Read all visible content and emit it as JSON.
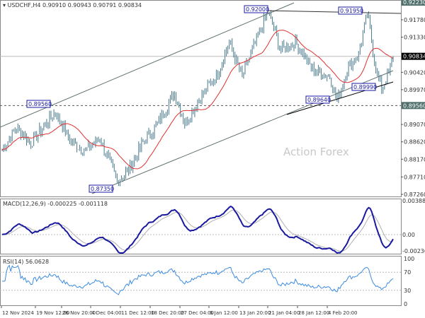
{
  "header": {
    "symbol": "USDCHF,H4",
    "ohlc": "0.90910 0.90943 0.90791 0.90834"
  },
  "watermark": "Action Forex",
  "chart_data": {
    "type": "line",
    "title": "USDCHF,H4",
    "price_ticks": [
      "0.92230",
      "0.91780",
      "0.91330",
      "0.90420",
      "0.89970",
      "0.89560",
      "0.89070",
      "0.88620",
      "0.88170",
      "0.87710",
      "0.87260"
    ],
    "current_price": "0.90834",
    "ylim": [
      0.8715,
      0.9235
    ],
    "annotations": [
      "0.92000",
      "0.91950",
      "0.89560",
      "0.87350",
      "0.89640",
      "0.89990"
    ],
    "close_anchors": [
      [
        0,
        0.884
      ],
      [
        10,
        0.89
      ],
      [
        20,
        0.886
      ],
      [
        37,
        0.894
      ],
      [
        48,
        0.886
      ],
      [
        58,
        0.884
      ],
      [
        68,
        0.887
      ],
      [
        80,
        0.876
      ],
      [
        88,
        0.879
      ],
      [
        98,
        0.886
      ],
      [
        105,
        0.889
      ],
      [
        120,
        0.899
      ],
      [
        127,
        0.891
      ],
      [
        137,
        0.897
      ],
      [
        150,
        0.904
      ],
      [
        158,
        0.912
      ],
      [
        167,
        0.903
      ],
      [
        174,
        0.91
      ],
      [
        185,
        0.92
      ],
      [
        194,
        0.91
      ],
      [
        204,
        0.912
      ],
      [
        216,
        0.905
      ],
      [
        228,
        0.903
      ],
      [
        233,
        0.897
      ],
      [
        240,
        0.905
      ],
      [
        248,
        0.909
      ],
      [
        254,
        0.9195
      ],
      [
        260,
        0.905
      ],
      [
        264,
        0.8999
      ],
      [
        269,
        0.904
      ],
      [
        272,
        0.9083
      ]
    ],
    "macd": {
      "label": "MACD(12,26,9) -0.000225 -0.001118",
      "ticks": [
        "0.00388",
        "0.00",
        "-0.002361"
      ]
    },
    "rsi": {
      "label": "RSI(14) 56.0628",
      "ticks": [
        "100",
        "70",
        "30",
        "0"
      ]
    },
    "x_ticks": [
      "12 Nov 2024",
      "19 Nov 12:00",
      "26 Nov 20:00",
      "4 Dec 04:00",
      "11 Dec 12:00",
      "18 Dec 20:00",
      "27 Dec 04:00",
      "6 Jan 12:00",
      "13 Jan 20:00",
      "21 Jan 04:00",
      "28 Jan 12:00",
      "4 Feb 20:00"
    ],
    "colors": {
      "bars": "#4a7a8c",
      "ma": "#e03030",
      "macd": "#1a1aa0",
      "signal": "#b0b0b0",
      "rsi": "#3b8be0"
    }
  }
}
